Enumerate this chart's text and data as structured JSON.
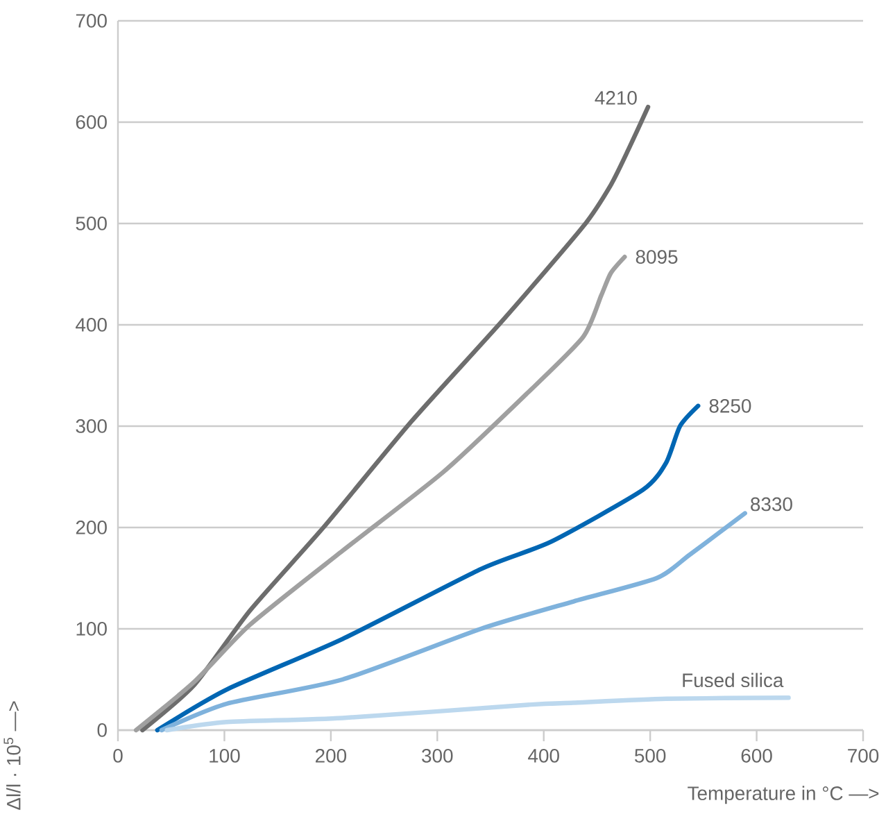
{
  "chart_data": {
    "type": "line",
    "xlabel": "Temperature in °C —>",
    "ylabel": "Δl/l · 10$^{5}$ —>",
    "xlim": [
      0,
      700
    ],
    "ylim": [
      0,
      700
    ],
    "xticks": [
      0,
      100,
      200,
      300,
      400,
      500,
      600,
      700
    ],
    "yticks": [
      0,
      100,
      200,
      300,
      400,
      500,
      600,
      700
    ],
    "grid": "y",
    "line_style": "solid",
    "marker": "none",
    "series": [
      {
        "name": "4210",
        "color": "#6d6d6d",
        "x": [
          23,
          72,
          124,
          193,
          276,
          362,
          437,
          463,
          480,
          498
        ],
        "values": [
          0,
          45,
          118,
          200,
          305,
          405,
          497,
          538,
          574,
          615
        ]
      },
      {
        "name": "8095",
        "color": "#a0a0a0",
        "x": [
          17,
          72,
          124,
          211,
          306,
          385,
          437,
          454,
          463,
          476
        ],
        "values": [
          0,
          48,
          104,
          177,
          255,
          333,
          388,
          429,
          451,
          467
        ]
      },
      {
        "name": "8250",
        "color": "#0066b3",
        "x": [
          37,
          102,
          211,
          341,
          407,
          493,
          515,
          528,
          545
        ],
        "values": [
          0,
          40,
          90,
          159,
          186,
          237,
          264,
          300,
          320
        ]
      },
      {
        "name": "8330",
        "color": "#7fb2dc",
        "x": [
          41,
          102,
          211,
          341,
          428,
          506,
          537,
          589
        ],
        "values": [
          0,
          26,
          50,
          100,
          127,
          150,
          173,
          214
        ]
      },
      {
        "name": "Fused silica",
        "color": "#bcd8ee",
        "x": [
          46,
          102,
          211,
          385,
          428,
          515,
          630
        ],
        "values": [
          0,
          8,
          12,
          25,
          27,
          31,
          32
        ]
      }
    ]
  }
}
